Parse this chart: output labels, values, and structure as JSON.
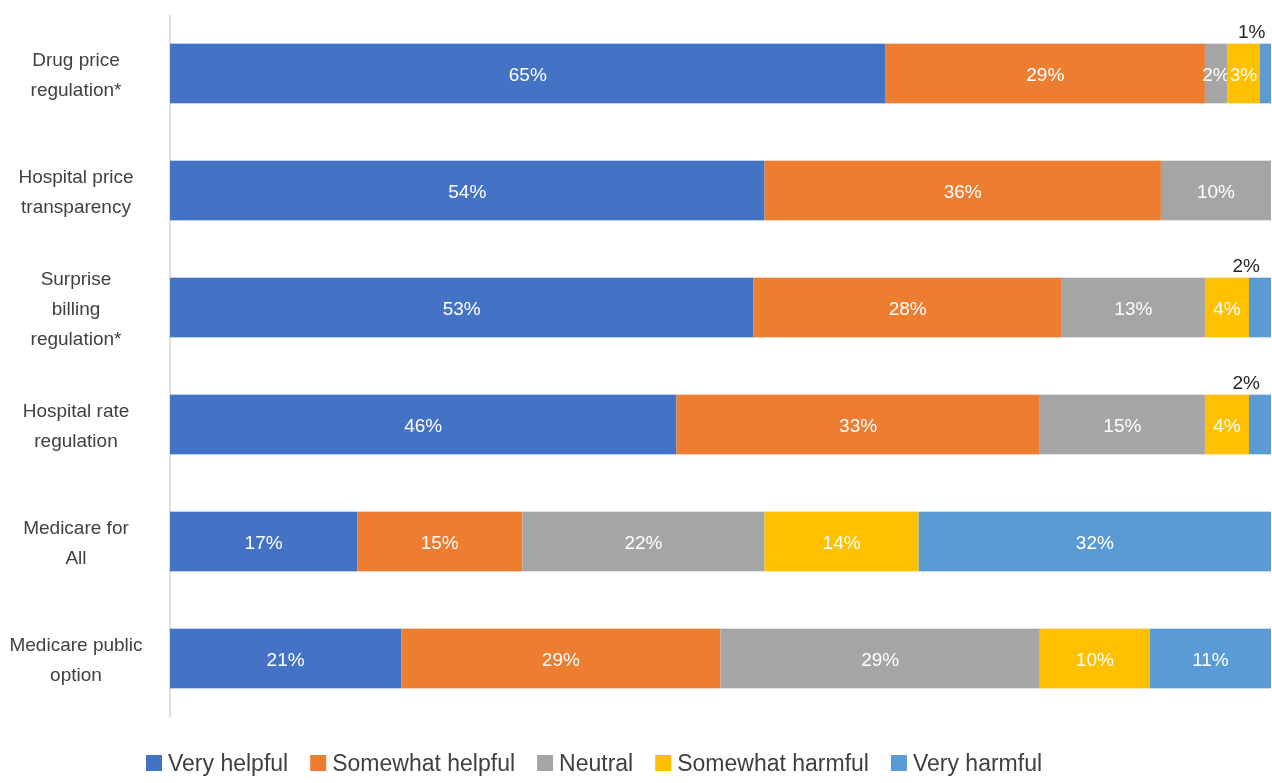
{
  "chart_data": {
    "type": "bar",
    "orientation": "horizontal",
    "stacked": true,
    "categories": [
      "Drug price regulation*",
      "Hospital price transparency",
      "Surprise billing regulation*",
      "Hospital rate regulation",
      "Medicare for All",
      "Medicare public option"
    ],
    "xlim": [
      0,
      100
    ],
    "tick_labels": "y",
    "legend": "bottom",
    "series": [
      {
        "name": "Very helpful",
        "color": "#4472c4",
        "values": [
          65,
          54,
          53,
          46,
          17,
          21
        ],
        "value_labels": [
          "65%",
          "54%",
          "53%",
          "46%",
          "17%",
          "21%"
        ]
      },
      {
        "name": "Somewhat helpful",
        "color": "#ed7d31",
        "values": [
          29,
          36,
          28,
          33,
          15,
          29
        ],
        "value_labels": [
          "29%",
          "36%",
          "28%",
          "33%",
          "15%",
          "29%"
        ]
      },
      {
        "name": "Neutral",
        "color": "#a5a5a5",
        "values": [
          2,
          10,
          13,
          15,
          22,
          29
        ],
        "value_labels": [
          "2%",
          "10%",
          "13%",
          "15%",
          "22%",
          "29%"
        ]
      },
      {
        "name": "Somewhat harmful",
        "color": "#ffc000",
        "values": [
          3,
          null,
          4,
          4,
          14,
          10
        ],
        "value_labels": [
          "3%",
          null,
          "4%",
          "4%",
          "14%",
          "10%"
        ]
      },
      {
        "name": "Very harmful",
        "color": "#5b9bd5",
        "values": [
          1,
          null,
          2,
          2,
          32,
          11
        ],
        "value_labels": [
          "1%",
          null,
          "2%",
          "2%",
          "32%",
          "11%"
        ]
      }
    ]
  }
}
